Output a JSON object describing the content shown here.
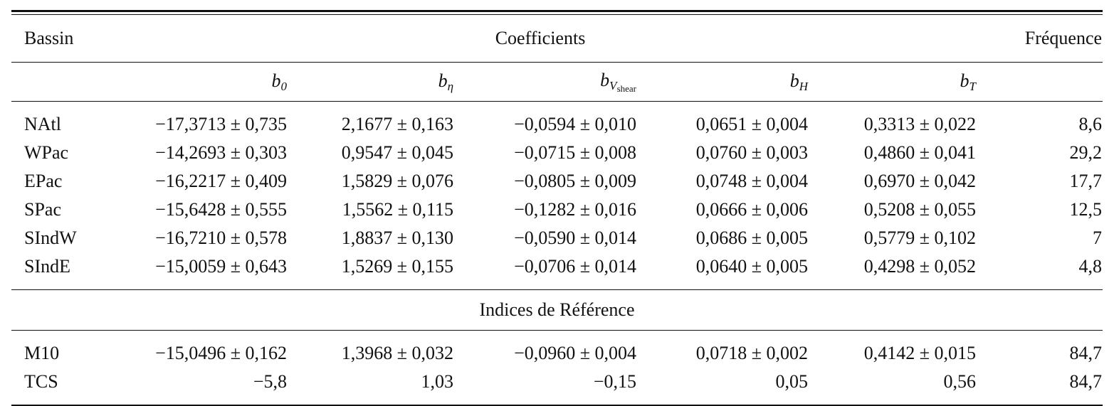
{
  "header": {
    "basin_label": "Bassin",
    "coefficients_label": "Coefficients",
    "frequency_label": "Fréquence"
  },
  "coefficient_symbols": [
    {
      "base": "b",
      "sub": "0",
      "subsub": ""
    },
    {
      "base": "b",
      "sub": "η",
      "subsub": ""
    },
    {
      "base": "b",
      "sub": "V",
      "subsub": "shear"
    },
    {
      "base": "b",
      "sub": "H",
      "subsub": ""
    },
    {
      "base": "b",
      "sub": "T",
      "subsub": ""
    }
  ],
  "basins": [
    {
      "name": "NAtl",
      "values": [
        "−17,3713 ± 0,735",
        "2,1677 ± 0,163",
        "−0,0594 ± 0,010",
        "0,0651 ± 0,004",
        "0,3313 ± 0,022"
      ],
      "frequency": "8,6"
    },
    {
      "name": "WPac",
      "values": [
        "−14,2693 ± 0,303",
        "0,9547 ± 0,045",
        "−0,0715 ± 0,008",
        "0,0760 ± 0,003",
        "0,4860 ± 0,041"
      ],
      "frequency": "29,2"
    },
    {
      "name": "EPac",
      "values": [
        "−16,2217 ± 0,409",
        "1,5829 ± 0,076",
        "−0,0805 ± 0,009",
        "0,0748 ± 0,004",
        "0,6970 ± 0,042"
      ],
      "frequency": "17,7"
    },
    {
      "name": "SPac",
      "values": [
        "−15,6428 ± 0,555",
        "1,5562 ± 0,115",
        "−0,1282 ± 0,016",
        "0,0666 ± 0,006",
        "0,5208 ± 0,055"
      ],
      "frequency": "12,5"
    },
    {
      "name": "SIndW",
      "values": [
        "−16,7210 ± 0,578",
        "1,8837 ± 0,130",
        "−0,0590 ± 0,014",
        "0,0686 ± 0,005",
        "0,5779 ± 0,102"
      ],
      "frequency": "7"
    },
    {
      "name": "SIndE",
      "values": [
        "−15,0059 ± 0,643",
        "1,5269 ± 0,155",
        "−0,0706 ± 0,014",
        "0,0640 ± 0,005",
        "0,4298 ± 0,052"
      ],
      "frequency": "4,8"
    }
  ],
  "reference_section": {
    "title": "Indices de Référence",
    "rows": [
      {
        "name": "M10",
        "values": [
          "−15,0496 ± 0,162",
          "1,3968 ± 0,032",
          "−0,0960 ± 0,004",
          "0,0718 ± 0,002",
          "0,4142 ± 0,015"
        ],
        "frequency": "84,7"
      },
      {
        "name": "TCS",
        "values": [
          "−5,8",
          "1,03",
          "−0,15",
          "0,05",
          "0,56"
        ],
        "frequency": "84,7"
      }
    ]
  }
}
